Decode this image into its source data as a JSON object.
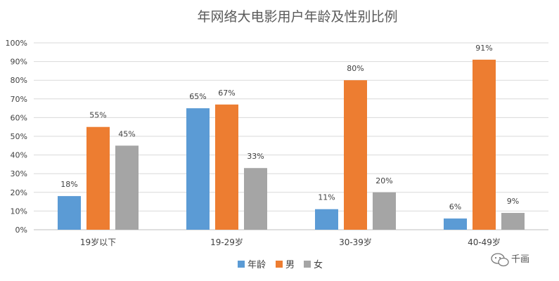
{
  "chart_data": {
    "type": "bar",
    "title": "年网络大电影用户年龄及性别比例",
    "categories": [
      "19岁以下",
      "19-29岁",
      "30-39岁",
      "40-49岁"
    ],
    "series": [
      {
        "name": "年龄",
        "color": "#5b9bd5",
        "values": [
          18,
          65,
          11,
          6
        ],
        "labels": [
          "18%",
          "65%",
          "11%",
          "6%"
        ]
      },
      {
        "name": "男",
        "color": "#ed7d31",
        "values": [
          55,
          67,
          80,
          91
        ],
        "labels": [
          "55%",
          "67%",
          "80%",
          "91%"
        ]
      },
      {
        "name": "女",
        "color": "#a5a5a5",
        "values": [
          45,
          33,
          20,
          9
        ],
        "labels": [
          "45%",
          "33%",
          "20%",
          "9%"
        ]
      }
    ],
    "ylim": [
      0,
      100
    ],
    "yticks": [
      "0%",
      "10%",
      "20%",
      "30%",
      "40%",
      "50%",
      "60%",
      "70%",
      "80%",
      "90%",
      "100%"
    ],
    "grid": true,
    "legend": "bottom-center"
  },
  "watermark": {
    "text": "千画",
    "icon": "wechat-icon"
  }
}
